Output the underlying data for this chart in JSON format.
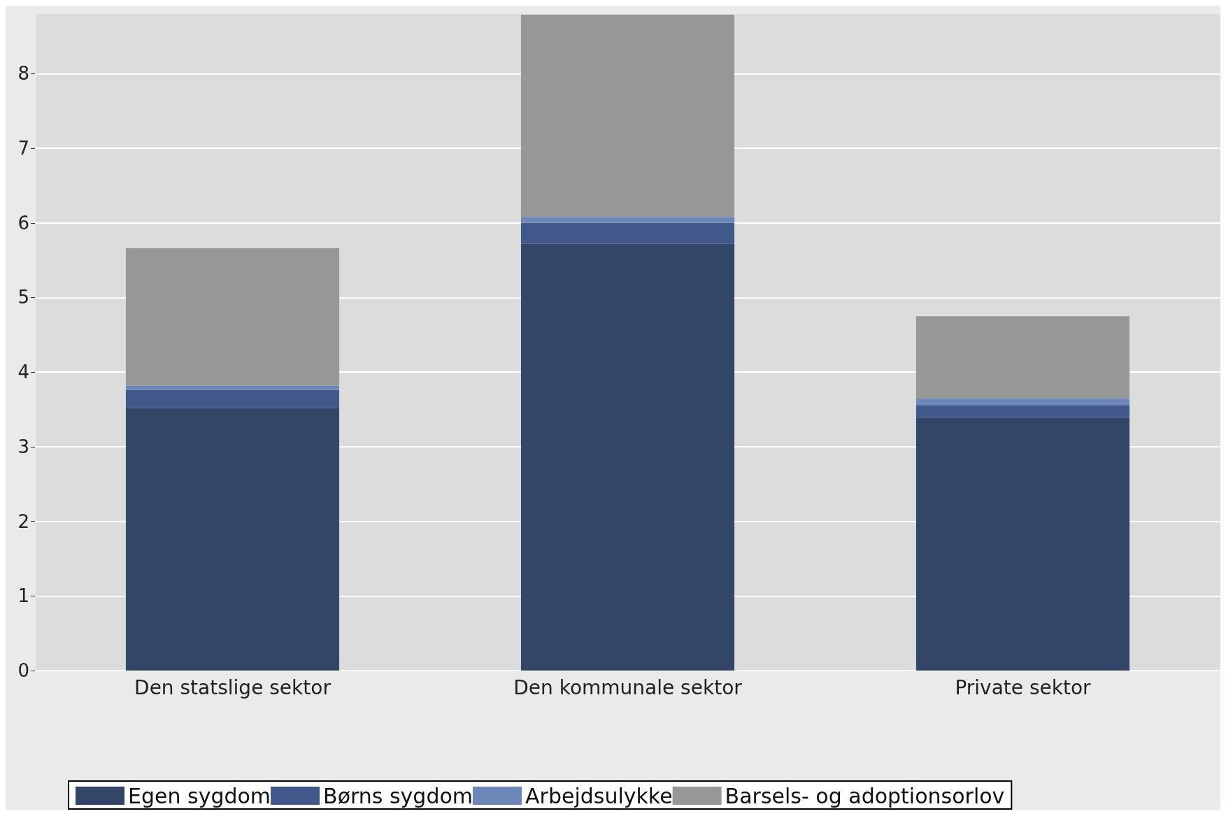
{
  "chart_data": {
    "type": "bar",
    "stacked": true,
    "categories": [
      "Den statslige sektor",
      "Den kommunale sektor",
      "Private sektor"
    ],
    "series": [
      {
        "name": "Egen sygdom",
        "color": "#344668",
        "values": [
          3.52,
          5.72,
          3.39
        ]
      },
      {
        "name": "Børns sygdom",
        "color": "#41598a",
        "values": [
          0.24,
          0.28,
          0.17
        ]
      },
      {
        "name": "Arbejdsulykke",
        "color": "#6d88b8",
        "values": [
          0.06,
          0.08,
          0.09
        ]
      },
      {
        "name": "Barsels- og adoptionsorlov",
        "color": "#979797",
        "values": [
          1.84,
          2.71,
          1.1
        ]
      }
    ],
    "ylim": [
      0,
      8.8
    ],
    "yticks": [
      0,
      1,
      2,
      3,
      4,
      5,
      6,
      7,
      8
    ],
    "grid": "y",
    "legend": "bottom"
  }
}
